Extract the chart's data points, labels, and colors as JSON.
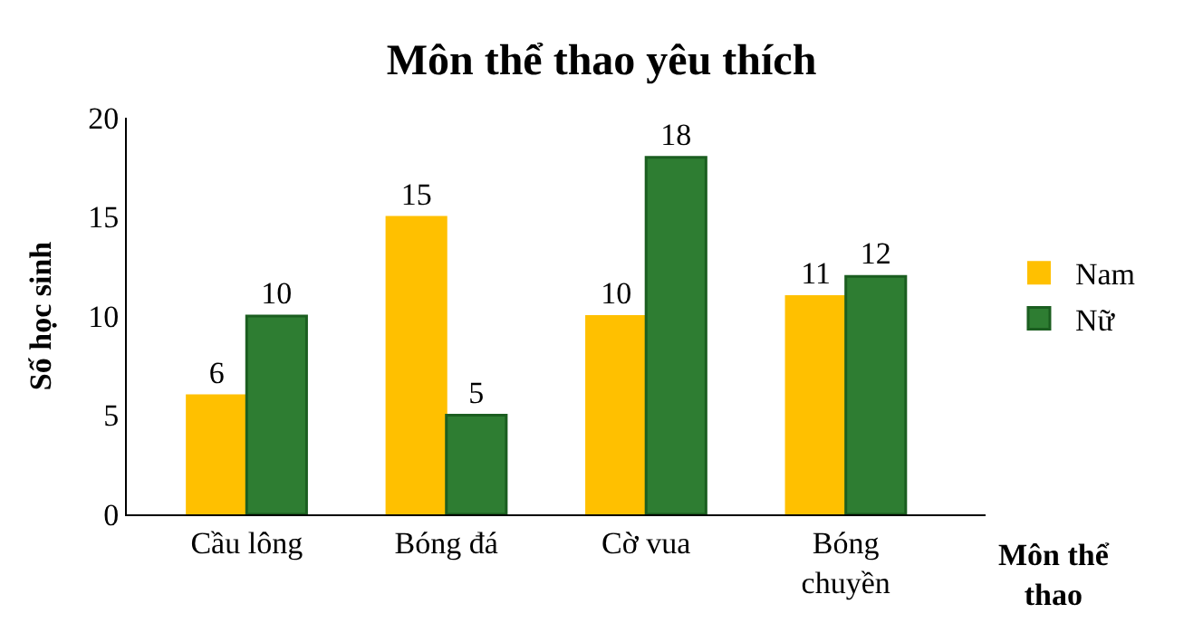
{
  "chart_data": {
    "type": "bar",
    "title": "Môn thể thao yêu thích",
    "xlabel": "Môn thể thao",
    "ylabel": "Số học sinh",
    "categories": [
      "Cầu lông",
      "Bóng đá",
      "Cờ vua",
      "Bóng chuyền"
    ],
    "series": [
      {
        "name": "Nam",
        "color": "#ffc000",
        "values": [
          6,
          15,
          10,
          11
        ]
      },
      {
        "name": "Nữ",
        "color": "#2e7d32",
        "values": [
          10,
          5,
          18,
          12
        ]
      }
    ],
    "ylim": [
      0,
      20
    ],
    "yticks": [
      0,
      5,
      10,
      15,
      20
    ],
    "legend": "right",
    "data_labels": true
  }
}
